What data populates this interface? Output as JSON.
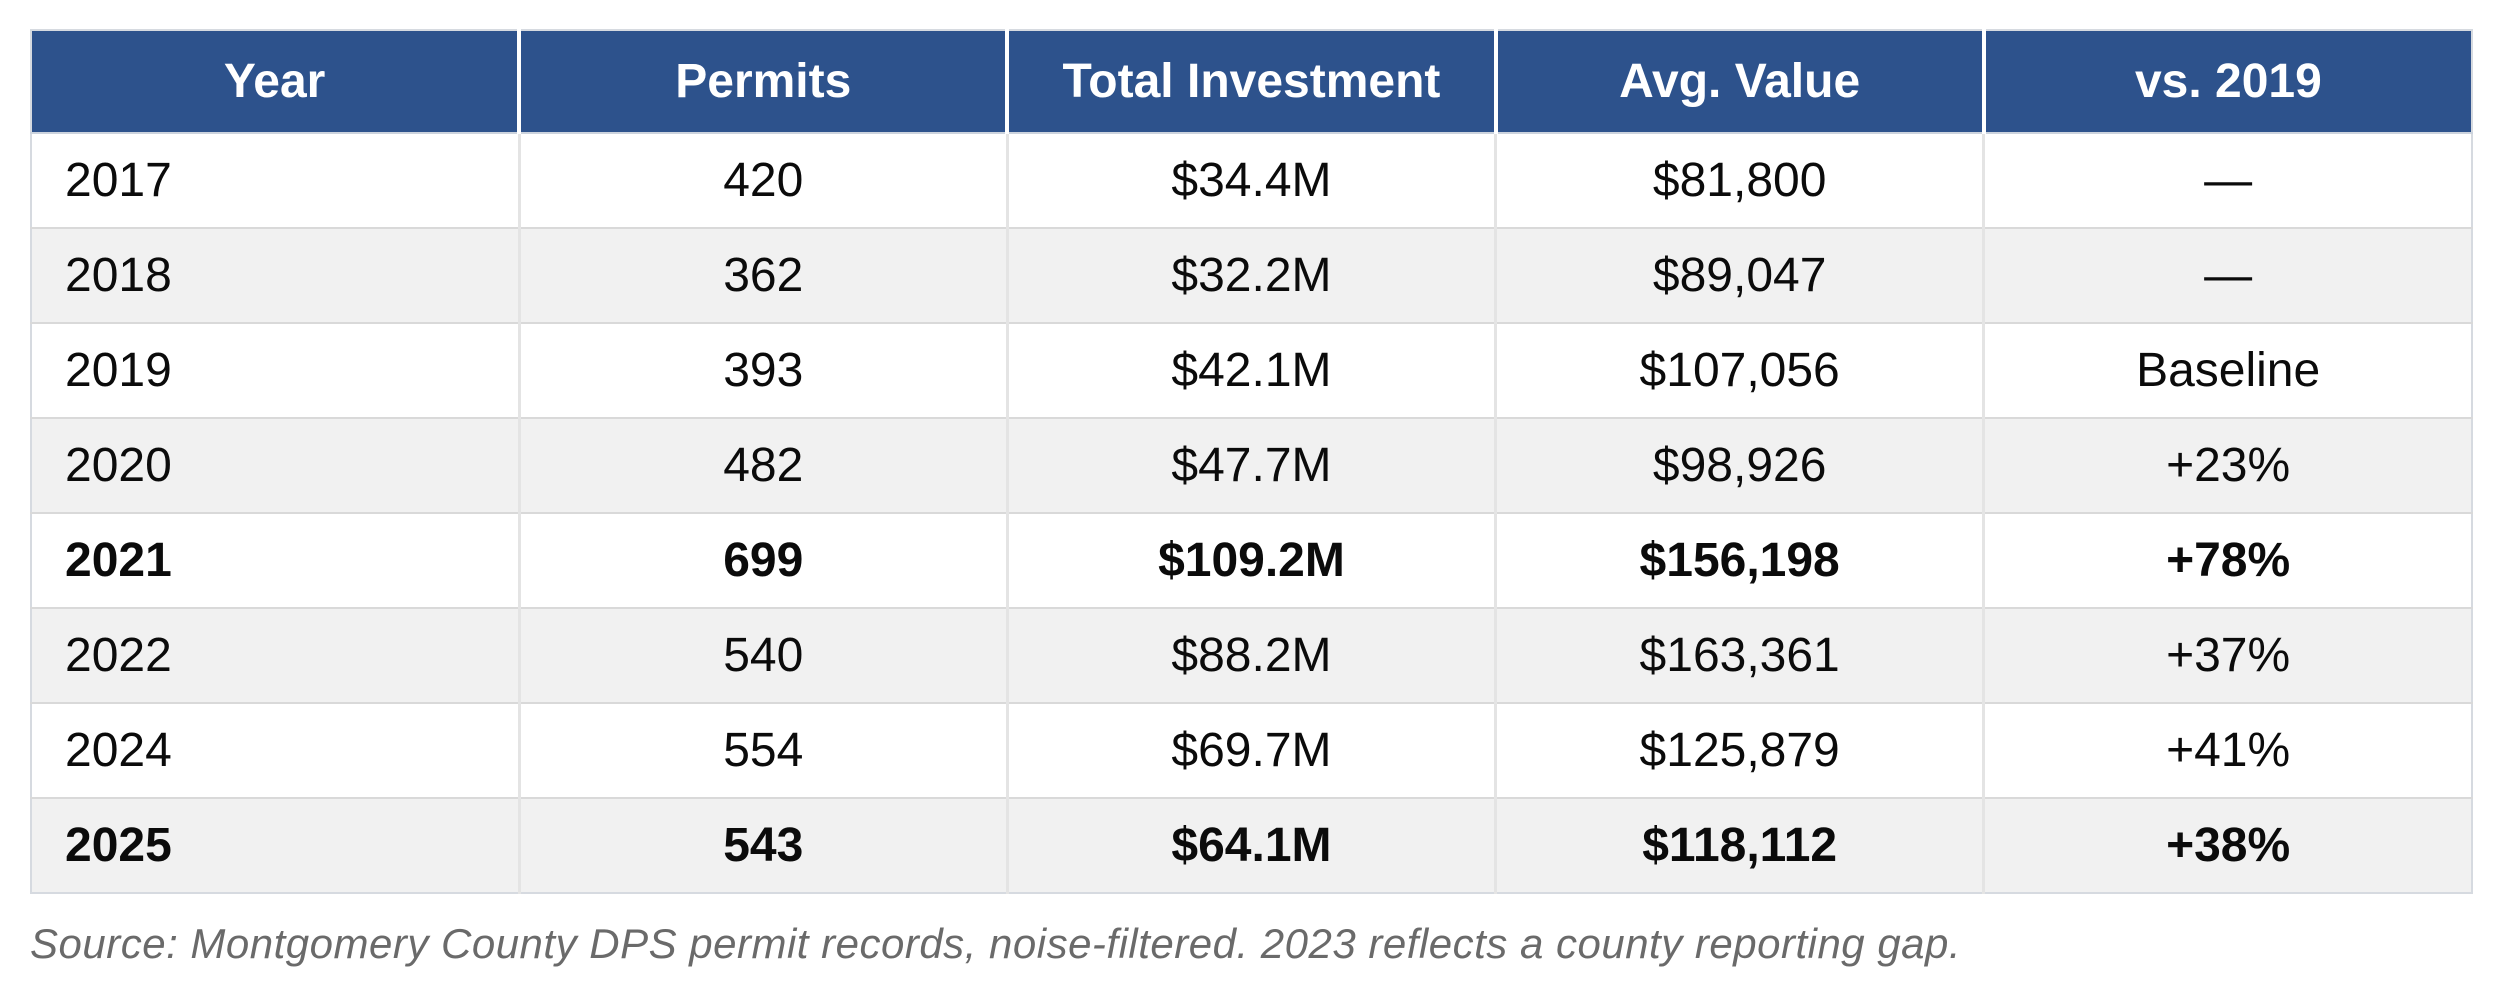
{
  "chart_data": {
    "type": "table",
    "title": "",
    "columns": [
      "Year",
      "Permits",
      "Total Investment",
      "Avg. Value",
      "vs. 2019"
    ],
    "rows": [
      {
        "cells": [
          "2017",
          "420",
          "$34.4M",
          "$81,800",
          "—"
        ],
        "bold": false
      },
      {
        "cells": [
          "2018",
          "362",
          "$32.2M",
          "$89,047",
          "—"
        ],
        "bold": false
      },
      {
        "cells": [
          "2019",
          "393",
          "$42.1M",
          "$107,056",
          "Baseline"
        ],
        "bold": false
      },
      {
        "cells": [
          "2020",
          "482",
          "$47.7M",
          "$98,926",
          "+23%"
        ],
        "bold": false
      },
      {
        "cells": [
          "2021",
          "699",
          "$109.2M",
          "$156,198",
          "+78%"
        ],
        "bold": true
      },
      {
        "cells": [
          "2022",
          "540",
          "$88.2M",
          "$163,361",
          "+37%"
        ],
        "bold": false
      },
      {
        "cells": [
          "2024",
          "554",
          "$69.7M",
          "$125,879",
          "+41%"
        ],
        "bold": false
      },
      {
        "cells": [
          "2025",
          "543",
          "$64.1M",
          "$118,112",
          "+38%"
        ],
        "bold": true
      }
    ],
    "source_note": "Source: Montgomery County DPS permit records, noise-filtered. 2023 reflects a county reporting gap.",
    "layout_hints": {
      "zebra_striping": true,
      "bold_years": [
        "2021",
        "2025"
      ],
      "year_column_alignment": "left",
      "other_columns_alignment": "center"
    }
  },
  "colors": {
    "header_bg": "#2d528c",
    "header_text": "#ffffff",
    "row_bg": "#ffffff",
    "row_alt_bg": "#f1f1f1",
    "row_border": "#d9d9d9",
    "column_divider": "#e4e4e4",
    "body_text": "#0b0b0b",
    "source_text": "#6a6a6a"
  }
}
